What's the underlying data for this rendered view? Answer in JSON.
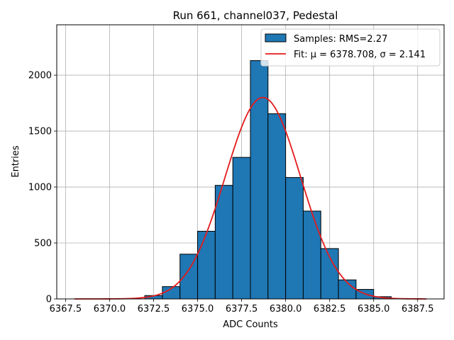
{
  "chart_data": {
    "type": "bar",
    "title": "Run 661, channel037, Pedestal",
    "xlabel": "ADC Counts",
    "ylabel": "Entries",
    "xlim": [
      6367.0,
      6389.0
    ],
    "ylim": [
      0,
      2450
    ],
    "xticks": [
      6367.5,
      6370.0,
      6372.5,
      6375.0,
      6377.5,
      6380.0,
      6382.5,
      6385.0,
      6387.5
    ],
    "xtick_labels": [
      "6367.5",
      "6370.0",
      "6372.5",
      "6375.0",
      "6377.5",
      "6380.0",
      "6382.5",
      "6385.0",
      "6387.5"
    ],
    "yticks": [
      0,
      500,
      1000,
      1500,
      2000
    ],
    "ytick_labels": [
      "0",
      "500",
      "1000",
      "1500",
      "2000"
    ],
    "grid": true,
    "legend_position": "top-right",
    "histogram": {
      "name": "Samples: RMS=2.27",
      "color": "#1f77b4",
      "edge_color": "#000000",
      "bin_edges": [
        6372,
        6373,
        6374,
        6375,
        6376,
        6377,
        6378,
        6379,
        6380,
        6381,
        6382,
        6383,
        6384,
        6385,
        6386
      ],
      "counts": [
        30,
        110,
        400,
        605,
        1015,
        1265,
        2130,
        1655,
        1085,
        785,
        450,
        170,
        85,
        20
      ]
    },
    "fit": {
      "name": "Fit: μ = 6378.708, σ = 2.141",
      "color": "#e41a1c",
      "mu": 6378.708,
      "sigma": 2.141,
      "amplitude": 1800,
      "x_range": [
        6368.0,
        6388.0
      ]
    }
  }
}
